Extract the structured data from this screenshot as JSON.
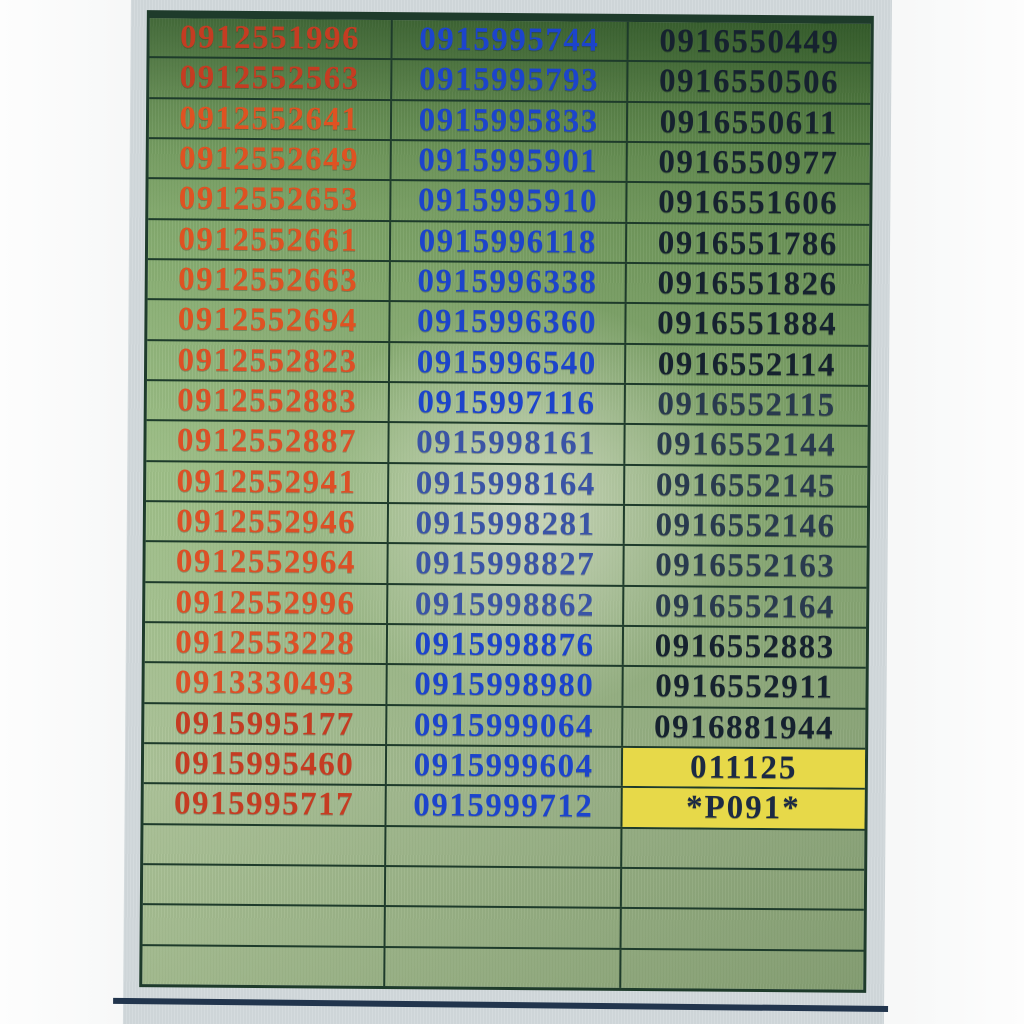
{
  "photo": {
    "background_color": "#d2d9dc",
    "edge_line_color": "#22354d"
  },
  "table": {
    "grid_line_color": "#1e3b2b",
    "green_top_color": "#4e7a3a",
    "green_mid_color": "#95ba7c",
    "green_bottom_color": "#a6bf90",
    "columns": [
      {
        "id": "column-1",
        "text_color": "#c53c22"
      },
      {
        "id": "column-2",
        "text_color": "#1c44cc"
      },
      {
        "id": "column-3",
        "text_color": "#16222f"
      }
    ],
    "rows": [
      [
        "0912551996",
        "0915995744",
        "0916550449"
      ],
      [
        "0912552563",
        "0915995793",
        "0916550506"
      ],
      [
        "0912552641",
        "0915995833",
        "0916550611"
      ],
      [
        "0912552649",
        "0915995901",
        "0916550977"
      ],
      [
        "0912552653",
        "0915995910",
        "0916551606"
      ],
      [
        "0912552661",
        "0915996118",
        "0916551786"
      ],
      [
        "0912552663",
        "0915996338",
        "0916551826"
      ],
      [
        "0912552694",
        "0915996360",
        "0916551884"
      ],
      [
        "0912552823",
        "0915996540",
        "0916552114"
      ],
      [
        "0912552883",
        "0915997116",
        "0916552115"
      ],
      [
        "0912552887",
        "0915998161",
        "0916552144"
      ],
      [
        "0912552941",
        "0915998164",
        "0916552145"
      ],
      [
        "0912552946",
        "0915998281",
        "0916552146"
      ],
      [
        "0912552964",
        "0915998827",
        "0916552163"
      ],
      [
        "0912552996",
        "0915998862",
        "0916552164"
      ],
      [
        "0912553228",
        "0915998876",
        "0916552883"
      ],
      [
        "0913330493",
        "0915998980",
        "0916552911"
      ],
      [
        "0915995177",
        "0915999064",
        "0916881944"
      ],
      [
        "0915995460",
        "0915999604",
        "011125"
      ],
      [
        "0915995717",
        "0915999712",
        "*P091*"
      ]
    ],
    "empty_row_count": 4,
    "highlight": {
      "background": "#e7d949",
      "text_color": "#1c2a44"
    }
  }
}
